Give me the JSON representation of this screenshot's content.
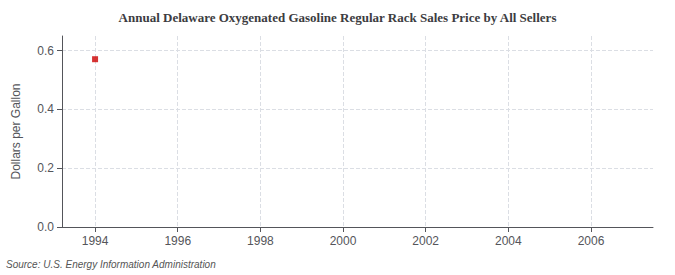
{
  "chart_data": {
    "type": "scatter",
    "title": "Annual Delaware Oxygenated Gasoline Regular Rack Sales Price by All Sellers",
    "ylabel": "Dollars per Gallon",
    "annotation": "Source: U.S. Energy Information Administration",
    "x": [
      1994
    ],
    "values": [
      0.571
    ],
    "color": "#cc0000",
    "marker": "square",
    "xlim": [
      1993.2,
      2007.5
    ],
    "ylim": [
      0.0,
      0.65
    ],
    "xticks": [
      1994,
      1996,
      1998,
      2000,
      2002,
      2004,
      2006
    ],
    "yticks": [
      {
        "value": 0.0,
        "label": "0.0"
      },
      0.2,
      0.4,
      0.6
    ],
    "grid": true
  }
}
